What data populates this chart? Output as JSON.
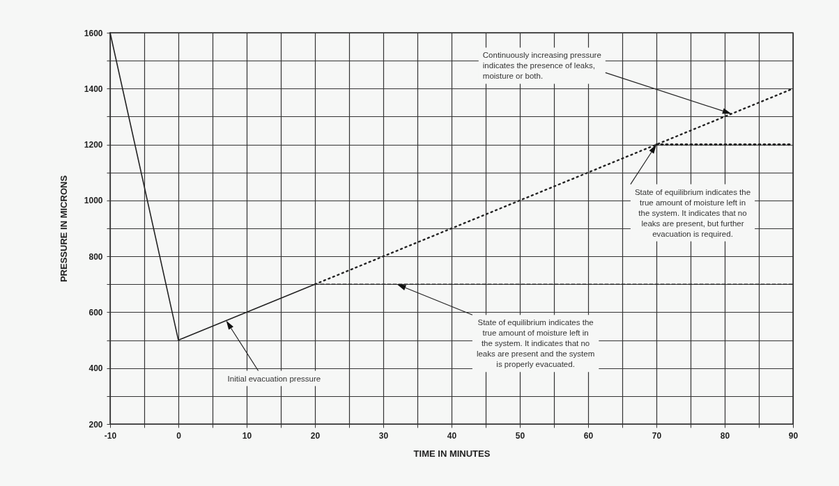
{
  "chart_data": {
    "type": "line",
    "xlabel": "TIME IN MINUTES",
    "ylabel": "PRESSURE IN MICRONS",
    "xlim": [
      -10,
      90
    ],
    "ylim": [
      200,
      1600
    ],
    "xticks": [
      -10,
      {
        "value": -5,
        "label": null
      },
      0,
      {
        "value": 5,
        "label": null
      },
      10,
      {
        "value": 15,
        "label": null
      },
      20,
      {
        "value": 25,
        "label": null
      },
      30,
      {
        "value": 35,
        "label": null
      },
      40,
      {
        "value": 45,
        "label": null
      },
      50,
      {
        "value": 55,
        "label": null
      },
      60,
      {
        "value": 65,
        "label": null
      },
      70,
      {
        "value": 75,
        "label": null
      },
      80,
      {
        "value": 85,
        "label": null
      },
      90
    ],
    "yticks": [
      200,
      {
        "value": 300,
        "label": null
      },
      400,
      {
        "value": 500,
        "label": null
      },
      600,
      {
        "value": 700,
        "label": null
      },
      800,
      {
        "value": 900,
        "label": null
      },
      1000,
      {
        "value": 1100,
        "label": null
      },
      1200,
      {
        "value": 1300,
        "label": null
      },
      1400,
      {
        "value": 1500,
        "label": null
      },
      1600
    ],
    "grid": true,
    "series": [
      {
        "color": "#222222",
        "line_style": "solid",
        "x": [
          -10,
          0,
          20
        ],
        "values": [
          1600,
          500,
          700
        ]
      },
      {
        "color": "#222222",
        "line_style": "dotted",
        "x": [
          20,
          90
        ],
        "values": [
          700,
          1400
        ]
      },
      {
        "color": "#222222",
        "line_style": "dashed",
        "x": [
          20,
          90
        ],
        "values": [
          700,
          700
        ]
      },
      {
        "color": "#222222",
        "line_style": "dotted",
        "x": [
          70,
          90
        ],
        "values": [
          1200,
          1200
        ]
      }
    ],
    "annotations": [
      "Initial evacuation pressure",
      "State of equilibrium indicates the true amount of moisture left in the system. It indicates that no leaks are present and the system is properly evacuated.",
      "State of equilibrium indicates the true amount of moisture left in the system. It indicates that no leaks are present, but further evacuation is required.",
      "Continuously increasing pressure indicates the presence of leaks, moisture or both."
    ]
  }
}
